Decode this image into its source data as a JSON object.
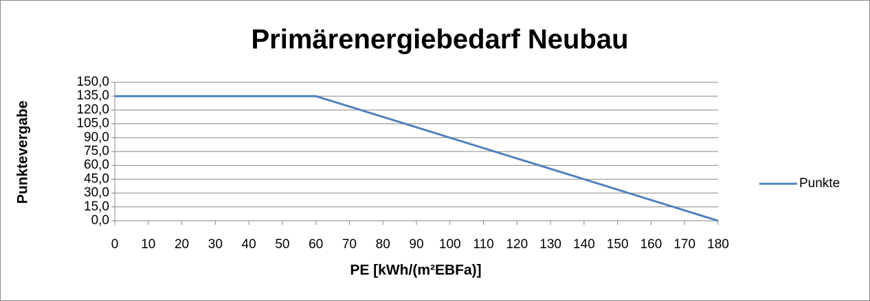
{
  "chart_data": {
    "type": "line",
    "title": "Primärenergiebedarf Neubau",
    "x_label": "PE [kWh/(m²EBFa)]",
    "y_label": "Punktevergabe",
    "x": [
      0,
      60,
      180
    ],
    "series": [
      {
        "name": "Punkte",
        "color": "#4f81bd",
        "values": [
          135,
          135,
          0
        ]
      }
    ],
    "xlim": [
      0,
      180
    ],
    "xticks": [
      0,
      10,
      20,
      30,
      40,
      50,
      60,
      70,
      80,
      90,
      100,
      110,
      120,
      130,
      140,
      150,
      160,
      170,
      180
    ],
    "ylim": [
      0,
      150
    ],
    "yticks": [
      {
        "value": 0,
        "label": "0,0"
      },
      {
        "value": 15,
        "label": "15,0"
      },
      {
        "value": 30,
        "label": "30,0"
      },
      {
        "value": 45,
        "label": "45,0"
      },
      {
        "value": 60,
        "label": "60,0"
      },
      {
        "value": 75,
        "label": "75,0"
      },
      {
        "value": 90,
        "label": "90,0"
      },
      {
        "value": 105,
        "label": "105,0"
      },
      {
        "value": 120,
        "label": "120,0"
      },
      {
        "value": 135,
        "label": "135,0"
      },
      {
        "value": 150,
        "label": "150,0"
      }
    ],
    "grid": true,
    "legend": "right"
  }
}
